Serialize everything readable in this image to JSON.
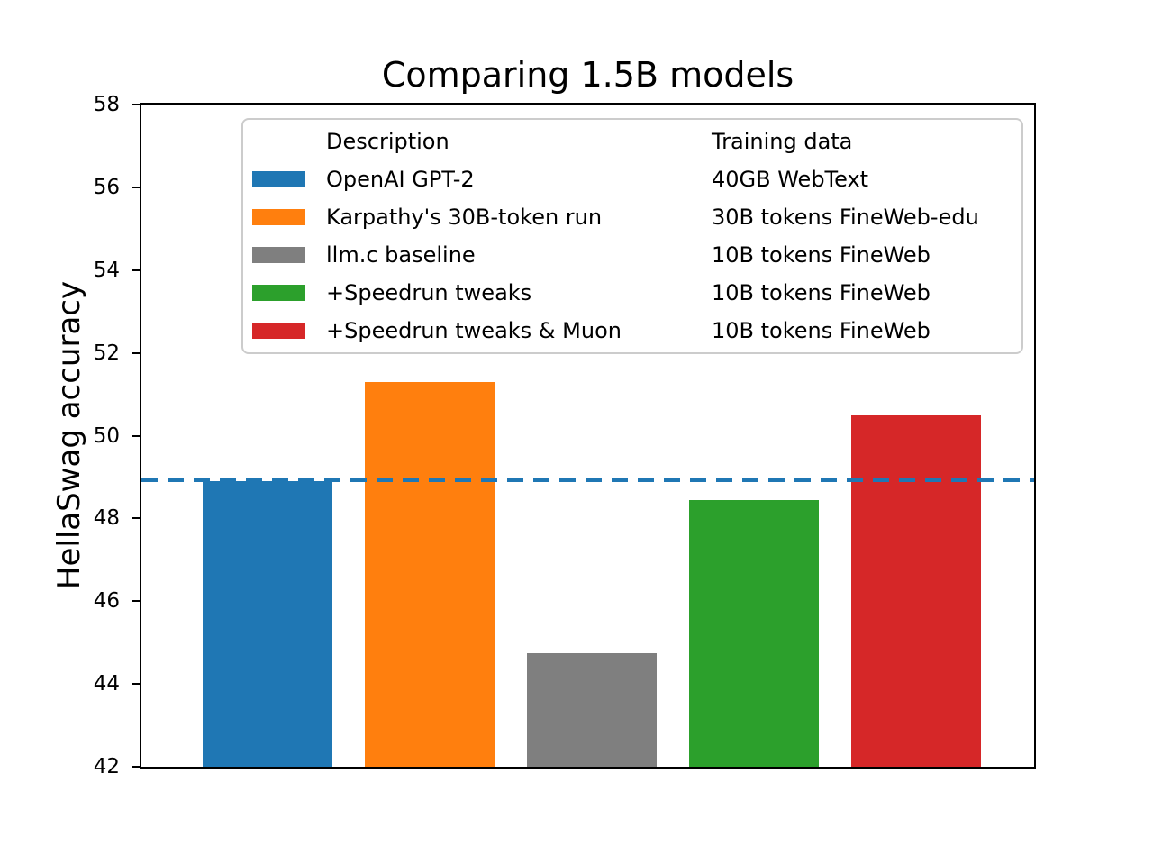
{
  "chart_data": {
    "type": "bar",
    "title": "Comparing 1.5B models",
    "ylabel": "HellaSwag accuracy",
    "xlabel": "",
    "ylim": [
      42,
      58
    ],
    "yticks": [
      42,
      44,
      46,
      48,
      50,
      52,
      54,
      56,
      58
    ],
    "grid": false,
    "legend_position": "upper center",
    "legend_headers": {
      "description": "Description",
      "training_data": "Training data"
    },
    "reference_line": {
      "value": 48.93,
      "style": "dashed",
      "color": "#1f77b4"
    },
    "series": [
      {
        "description": "OpenAI GPT-2",
        "training_data": "40GB WebText",
        "value": 48.9,
        "color": "#1f77b4"
      },
      {
        "description": "Karpathy's 30B-token run",
        "training_data": "30B tokens FineWeb-edu",
        "value": 51.3,
        "color": "#ff7f0e"
      },
      {
        "description": "llm.c baseline",
        "training_data": "10B tokens FineWeb",
        "value": 44.75,
        "color": "#7f7f7f"
      },
      {
        "description": "+Speedrun tweaks",
        "training_data": "10B tokens FineWeb",
        "value": 48.45,
        "color": "#2ca02c"
      },
      {
        "description": "+Speedrun tweaks & Muon",
        "training_data": "10B tokens FineWeb",
        "value": 50.5,
        "color": "#d62728"
      }
    ]
  }
}
